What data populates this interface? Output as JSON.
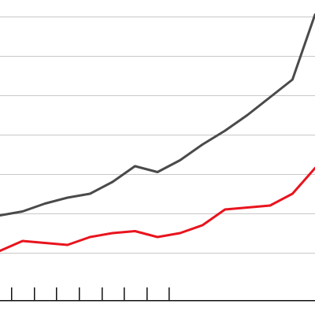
{
  "chart_data": {
    "type": "line",
    "x": [
      0,
      1,
      2,
      3,
      4,
      5,
      6,
      7,
      8,
      9,
      10,
      11,
      12,
      13,
      14
    ],
    "series": [
      {
        "color": "#4a4a4a",
        "values": [
          5.9,
          6.1,
          6.5,
          6.8,
          7.0,
          7.6,
          8.4,
          8.1,
          8.7,
          9.5,
          10.2,
          11.0,
          11.9,
          12.8,
          16.1
        ]
      },
      {
        "color": "#e8141e",
        "values": [
          4.1,
          4.6,
          4.5,
          4.4,
          4.8,
          5.0,
          5.1,
          4.8,
          5.0,
          5.4,
          6.2,
          6.3,
          6.4,
          7.0,
          8.3
        ]
      }
    ],
    "xlim": [
      0,
      14
    ],
    "ylim": [
      3,
      16
    ],
    "gridlines_y": [
      4,
      6,
      8,
      10,
      12,
      14,
      16
    ],
    "xticks": [
      0.5,
      1.5,
      2.5,
      3.5,
      4.5,
      5.5,
      6.5,
      7.5
    ],
    "grid": true,
    "legend": "none"
  }
}
